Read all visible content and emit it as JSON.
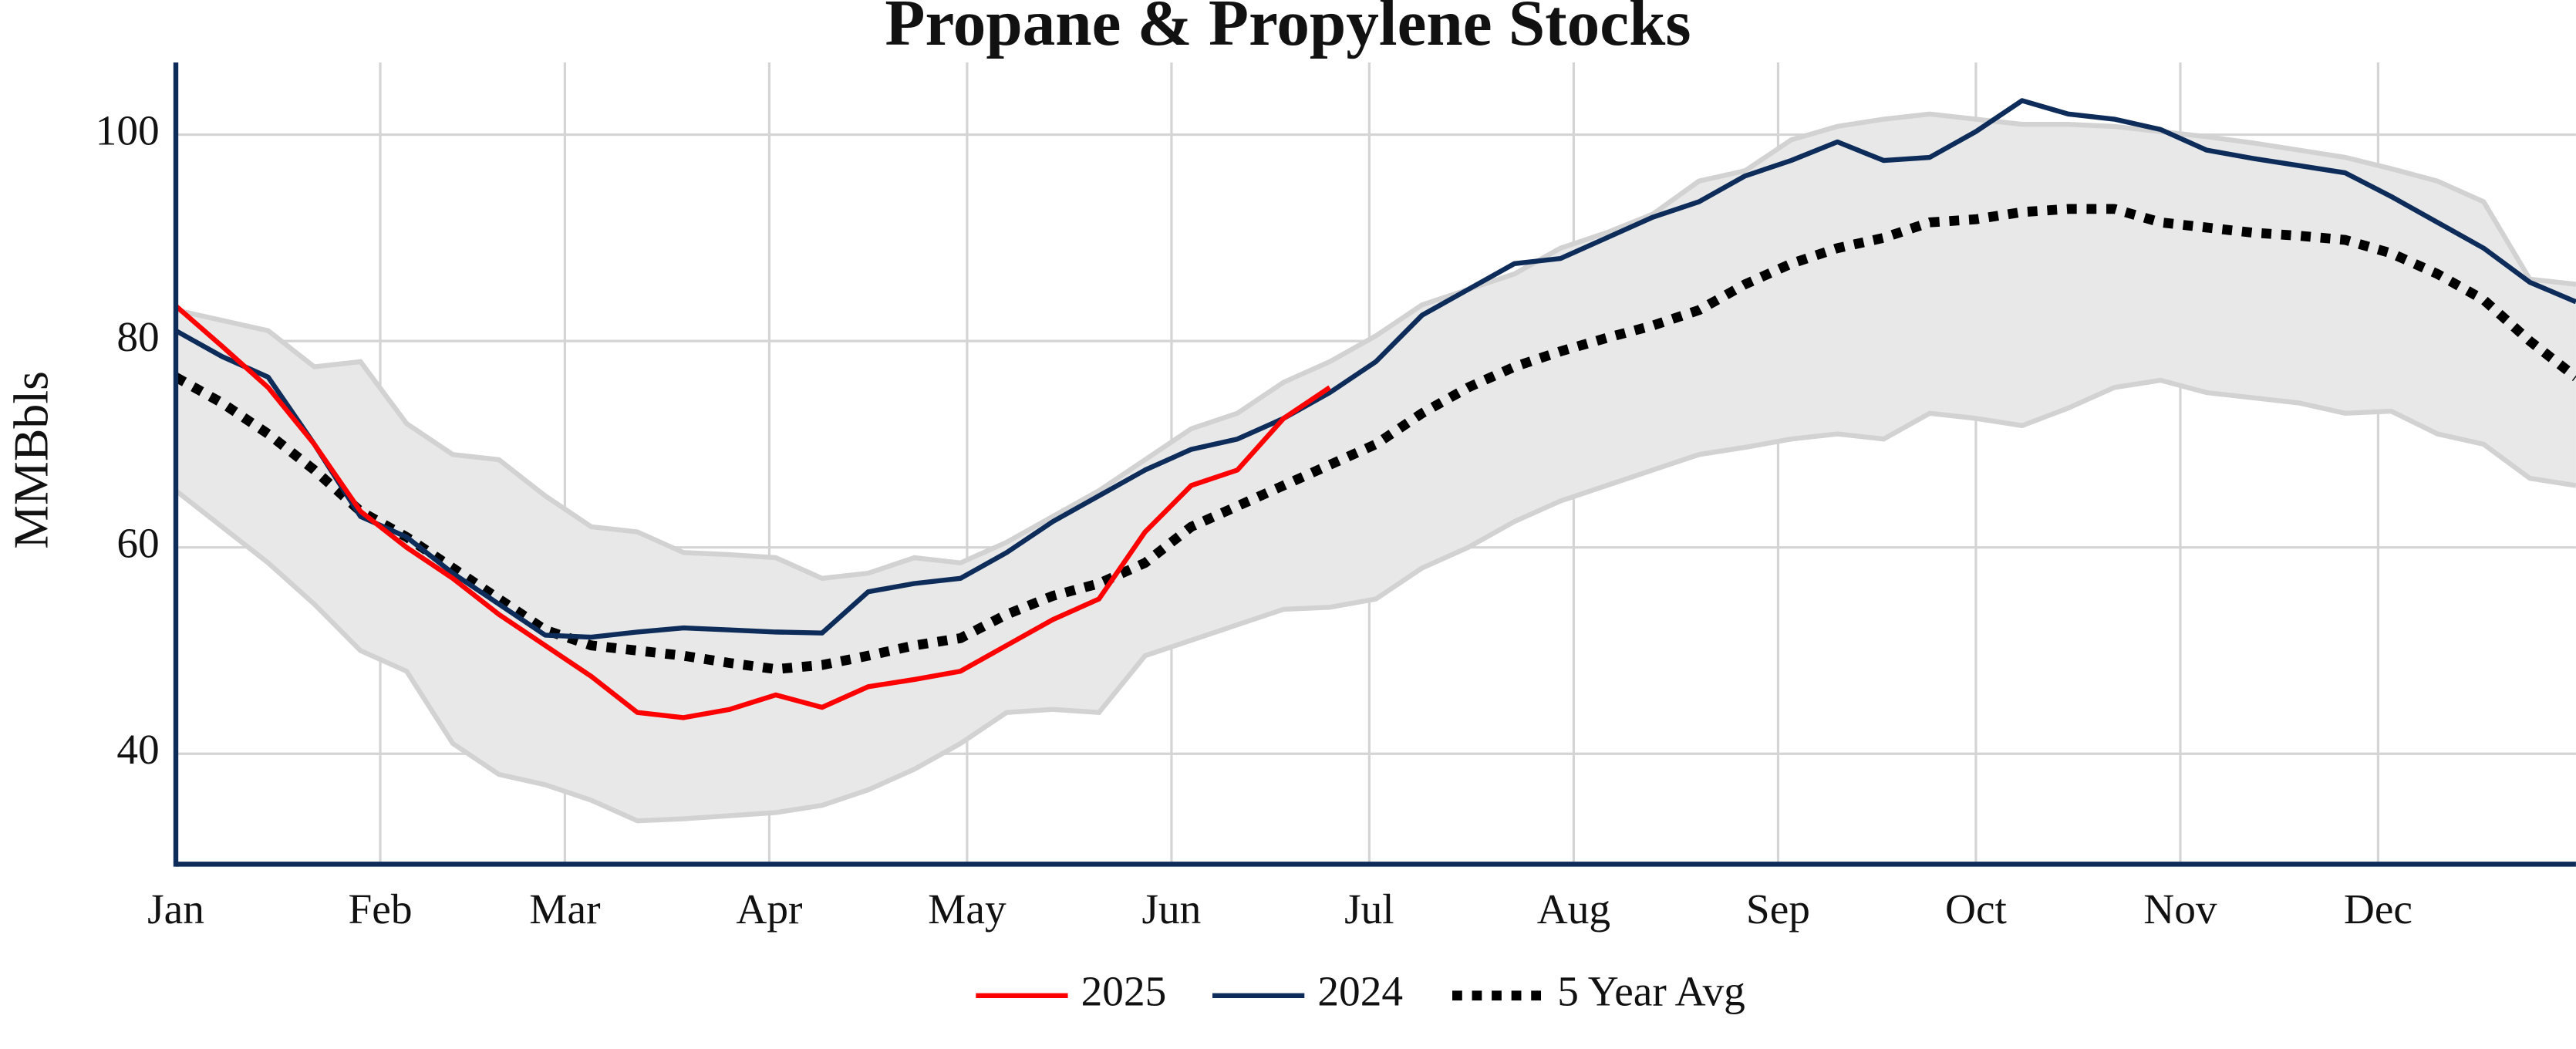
{
  "chart_data": {
    "type": "line",
    "title": "Propane & Propylene Stocks",
    "y_label": "MMBbls",
    "x": [
      0,
      7,
      14,
      21,
      28,
      35,
      42,
      49,
      56,
      63,
      70,
      77,
      84,
      91,
      98,
      105,
      112,
      119,
      126,
      133,
      140,
      147,
      154,
      161,
      168,
      175,
      182,
      189,
      196,
      203,
      210,
      217,
      224,
      231,
      238,
      245,
      252,
      259,
      266,
      273,
      280,
      287,
      294,
      301,
      308,
      315,
      322,
      329,
      336,
      343,
      350,
      357,
      364
    ],
    "xlim": [
      0,
      364
    ],
    "xticks": [
      {
        "value": 0,
        "label": "Jan"
      },
      {
        "value": 31,
        "label": "Feb"
      },
      {
        "value": 59,
        "label": "Mar"
      },
      {
        "value": 90,
        "label": "Apr"
      },
      {
        "value": 120,
        "label": "May"
      },
      {
        "value": 151,
        "label": "Jun"
      },
      {
        "value": 181,
        "label": "Jul"
      },
      {
        "value": 212,
        "label": "Aug"
      },
      {
        "value": 243,
        "label": "Sep"
      },
      {
        "value": 273,
        "label": "Oct"
      },
      {
        "value": 304,
        "label": "Nov"
      },
      {
        "value": 334,
        "label": "Dec"
      }
    ],
    "ylim": [
      29.3,
      107
    ],
    "yticks": [
      40,
      60,
      80,
      100
    ],
    "grid": true,
    "legend": "bottom",
    "band": {
      "color": "#e8e8e8",
      "edge_color": "#d2d2d2",
      "upper": [
        83,
        82,
        81,
        77.5,
        78,
        72,
        69,
        68.5,
        65,
        62,
        61.5,
        59.5,
        59.3,
        59,
        57,
        57.5,
        59,
        58.5,
        60.5,
        63,
        65.5,
        68.5,
        71.5,
        73,
        76,
        78,
        80.5,
        83.5,
        85,
        86.5,
        89,
        90.5,
        92.3,
        95.5,
        96.5,
        99.5,
        100.8,
        101.5,
        102,
        101.5,
        101,
        101,
        100.8,
        100.3,
        99.8,
        99.2,
        98.5,
        97.8,
        96.7,
        95.5,
        93.5,
        86,
        85.5
      ],
      "lower": [
        65.5,
        62,
        58.5,
        54.5,
        50,
        48,
        41,
        38,
        37,
        35.5,
        33.5,
        33.7,
        34,
        34.3,
        35,
        36.5,
        38.5,
        41,
        44,
        44.3,
        44,
        49.5,
        51,
        52.5,
        54,
        54.2,
        55,
        58,
        60,
        62.5,
        64.5,
        66,
        67.5,
        69,
        69.7,
        70.5,
        71,
        70.5,
        73,
        72.5,
        71.8,
        73.5,
        75.5,
        76.2,
        75,
        74.5,
        74,
        73,
        73.2,
        71,
        70,
        66.7,
        66
      ]
    },
    "series": [
      {
        "name": "2025",
        "color": "#ff0000",
        "line_style": "solid",
        "values": [
          83.4,
          79.5,
          75.5,
          70,
          63.5,
          60,
          57,
          53.5,
          50.5,
          47.5,
          44,
          43.5,
          44.3,
          45.7,
          44.5,
          46.5,
          47.2,
          48,
          50.5,
          53,
          55,
          61.5,
          66,
          67.5,
          72.5,
          75.5,
          null,
          null,
          null,
          null,
          null,
          null,
          null,
          null,
          null,
          null,
          null,
          null,
          null,
          null,
          null,
          null,
          null,
          null,
          null,
          null,
          null,
          null,
          null,
          null,
          null,
          null,
          null
        ]
      },
      {
        "name": "2024",
        "color": "#0d2c5a",
        "line_style": "solid",
        "values": [
          81,
          78.5,
          76.5,
          70,
          63,
          61,
          57.5,
          54.5,
          51.5,
          51.3,
          51.8,
          52.2,
          52,
          51.8,
          51.7,
          55.7,
          56.5,
          57,
          59.5,
          62.5,
          65,
          67.5,
          69.5,
          70.5,
          72.5,
          75,
          78,
          82.5,
          85,
          87.5,
          88,
          90,
          92,
          93.5,
          96,
          97.5,
          99.3,
          97.5,
          97.8,
          100.3,
          103.3,
          102,
          101.5,
          100.5,
          98.5,
          97.7,
          97,
          96.3,
          94,
          91.5,
          89,
          85.7,
          83.8
        ]
      },
      {
        "name": "5 Year Avg",
        "color": "#000000",
        "line_style": "dotted",
        "values": [
          76.5,
          74,
          71,
          67.5,
          63.5,
          61,
          58,
          55,
          52,
          50.5,
          50,
          49.5,
          48.8,
          48.2,
          48.6,
          49.5,
          50.5,
          51.2,
          53.5,
          55.3,
          56.5,
          58.5,
          62,
          64,
          66,
          68,
          70,
          73,
          75.5,
          77.5,
          79,
          80.3,
          81.5,
          83,
          85.5,
          87.5,
          89,
          90,
          91.5,
          91.8,
          92.5,
          92.8,
          92.8,
          91.5,
          91,
          90.5,
          90.2,
          89.8,
          88.5,
          86.5,
          84,
          80,
          76.5
        ]
      }
    ]
  }
}
